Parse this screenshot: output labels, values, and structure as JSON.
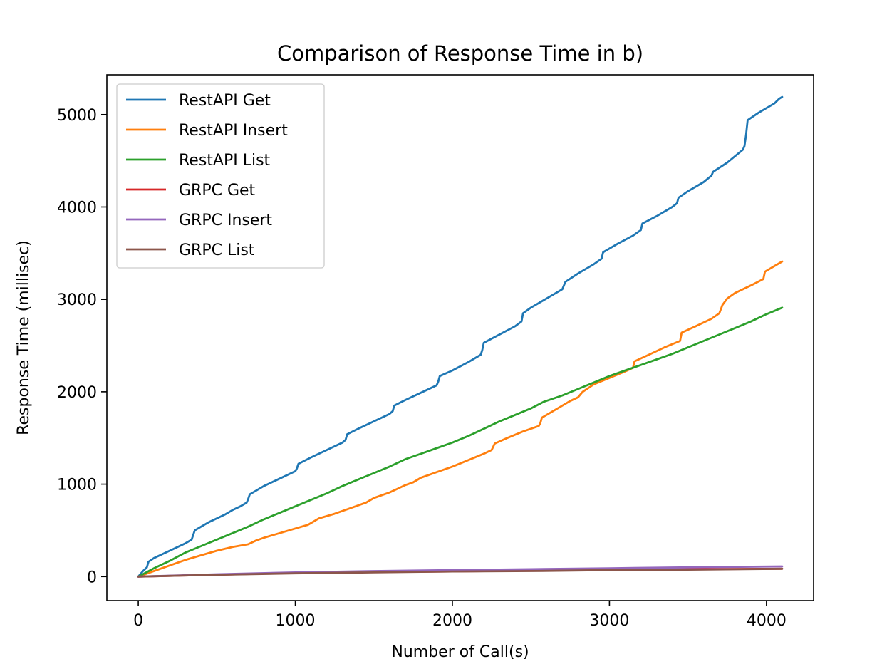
{
  "chart_data": {
    "type": "line",
    "title": "Comparison of Response Time in b)",
    "xlabel": "Number of Call(s)",
    "ylabel": "Response Time (millisec)",
    "xlim": [
      -200,
      4300
    ],
    "ylim": [
      -260,
      5430
    ],
    "xticks": [
      0,
      1000,
      2000,
      3000,
      4000
    ],
    "yticks": [
      0,
      1000,
      2000,
      3000,
      4000,
      5000
    ],
    "grid": false,
    "legend_position": "top-left",
    "series": [
      {
        "name": "RestAPI Get",
        "color": "#1f77b4",
        "points": [
          [
            0,
            0
          ],
          [
            30,
            60
          ],
          [
            55,
            100
          ],
          [
            65,
            160
          ],
          [
            100,
            200
          ],
          [
            150,
            240
          ],
          [
            200,
            280
          ],
          [
            300,
            360
          ],
          [
            340,
            400
          ],
          [
            350,
            450
          ],
          [
            360,
            500
          ],
          [
            400,
            540
          ],
          [
            450,
            590
          ],
          [
            500,
            630
          ],
          [
            550,
            670
          ],
          [
            600,
            720
          ],
          [
            650,
            760
          ],
          [
            690,
            800
          ],
          [
            700,
            840
          ],
          [
            710,
            890
          ],
          [
            750,
            930
          ],
          [
            800,
            980
          ],
          [
            900,
            1060
          ],
          [
            1000,
            1140
          ],
          [
            1010,
            1170
          ],
          [
            1020,
            1220
          ],
          [
            1100,
            1290
          ],
          [
            1200,
            1370
          ],
          [
            1300,
            1450
          ],
          [
            1320,
            1480
          ],
          [
            1330,
            1540
          ],
          [
            1400,
            1600
          ],
          [
            1500,
            1680
          ],
          [
            1600,
            1760
          ],
          [
            1620,
            1790
          ],
          [
            1630,
            1850
          ],
          [
            1700,
            1910
          ],
          [
            1800,
            1990
          ],
          [
            1900,
            2070
          ],
          [
            1910,
            2110
          ],
          [
            1920,
            2170
          ],
          [
            2000,
            2230
          ],
          [
            2100,
            2320
          ],
          [
            2180,
            2400
          ],
          [
            2190,
            2450
          ],
          [
            2200,
            2530
          ],
          [
            2300,
            2620
          ],
          [
            2400,
            2710
          ],
          [
            2440,
            2760
          ],
          [
            2450,
            2850
          ],
          [
            2500,
            2910
          ],
          [
            2600,
            3010
          ],
          [
            2700,
            3110
          ],
          [
            2720,
            3190
          ],
          [
            2800,
            3280
          ],
          [
            2900,
            3380
          ],
          [
            2950,
            3440
          ],
          [
            2960,
            3510
          ],
          [
            3050,
            3600
          ],
          [
            3150,
            3690
          ],
          [
            3200,
            3750
          ],
          [
            3210,
            3820
          ],
          [
            3300,
            3900
          ],
          [
            3400,
            4000
          ],
          [
            3430,
            4040
          ],
          [
            3440,
            4100
          ],
          [
            3500,
            4170
          ],
          [
            3600,
            4270
          ],
          [
            3650,
            4340
          ],
          [
            3660,
            4380
          ],
          [
            3750,
            4480
          ],
          [
            3850,
            4620
          ],
          [
            3860,
            4660
          ],
          [
            3870,
            4780
          ],
          [
            3880,
            4940
          ],
          [
            3950,
            5020
          ],
          [
            4050,
            5120
          ],
          [
            4080,
            5170
          ],
          [
            4100,
            5190
          ]
        ]
      },
      {
        "name": "RestAPI Insert",
        "color": "#ff7f0e",
        "points": [
          [
            0,
            0
          ],
          [
            100,
            60
          ],
          [
            200,
            120
          ],
          [
            300,
            180
          ],
          [
            400,
            230
          ],
          [
            500,
            280
          ],
          [
            600,
            320
          ],
          [
            700,
            350
          ],
          [
            750,
            390
          ],
          [
            800,
            420
          ],
          [
            900,
            470
          ],
          [
            1000,
            520
          ],
          [
            1080,
            560
          ],
          [
            1100,
            580
          ],
          [
            1150,
            630
          ],
          [
            1250,
            680
          ],
          [
            1350,
            740
          ],
          [
            1450,
            800
          ],
          [
            1500,
            850
          ],
          [
            1600,
            910
          ],
          [
            1650,
            950
          ],
          [
            1700,
            990
          ],
          [
            1750,
            1020
          ],
          [
            1800,
            1070
          ],
          [
            1900,
            1130
          ],
          [
            2000,
            1190
          ],
          [
            2100,
            1260
          ],
          [
            2200,
            1330
          ],
          [
            2250,
            1370
          ],
          [
            2270,
            1440
          ],
          [
            2350,
            1500
          ],
          [
            2450,
            1570
          ],
          [
            2550,
            1630
          ],
          [
            2560,
            1660
          ],
          [
            2570,
            1720
          ],
          [
            2650,
            1800
          ],
          [
            2700,
            1850
          ],
          [
            2750,
            1900
          ],
          [
            2800,
            1940
          ],
          [
            2830,
            2000
          ],
          [
            2900,
            2080
          ],
          [
            3000,
            2150
          ],
          [
            3100,
            2220
          ],
          [
            3150,
            2260
          ],
          [
            3160,
            2330
          ],
          [
            3250,
            2400
          ],
          [
            3350,
            2480
          ],
          [
            3450,
            2550
          ],
          [
            3460,
            2640
          ],
          [
            3550,
            2710
          ],
          [
            3650,
            2790
          ],
          [
            3700,
            2850
          ],
          [
            3720,
            2940
          ],
          [
            3750,
            3010
          ],
          [
            3800,
            3070
          ],
          [
            3900,
            3150
          ],
          [
            3980,
            3220
          ],
          [
            3990,
            3300
          ],
          [
            4050,
            3360
          ],
          [
            4100,
            3410
          ]
        ]
      },
      {
        "name": "RestAPI List",
        "color": "#2ca02c",
        "points": [
          [
            0,
            0
          ],
          [
            100,
            90
          ],
          [
            200,
            170
          ],
          [
            300,
            260
          ],
          [
            400,
            330
          ],
          [
            500,
            400
          ],
          [
            600,
            470
          ],
          [
            700,
            540
          ],
          [
            800,
            620
          ],
          [
            900,
            690
          ],
          [
            1000,
            760
          ],
          [
            1100,
            830
          ],
          [
            1200,
            900
          ],
          [
            1300,
            980
          ],
          [
            1400,
            1050
          ],
          [
            1500,
            1120
          ],
          [
            1600,
            1190
          ],
          [
            1700,
            1270
          ],
          [
            1800,
            1330
          ],
          [
            1900,
            1390
          ],
          [
            2000,
            1450
          ],
          [
            2100,
            1520
          ],
          [
            2200,
            1600
          ],
          [
            2300,
            1680
          ],
          [
            2400,
            1750
          ],
          [
            2500,
            1820
          ],
          [
            2580,
            1890
          ],
          [
            2700,
            1960
          ],
          [
            2800,
            2030
          ],
          [
            2900,
            2100
          ],
          [
            3000,
            2170
          ],
          [
            3100,
            2230
          ],
          [
            3200,
            2290
          ],
          [
            3300,
            2350
          ],
          [
            3400,
            2410
          ],
          [
            3500,
            2480
          ],
          [
            3600,
            2550
          ],
          [
            3700,
            2620
          ],
          [
            3800,
            2690
          ],
          [
            3900,
            2760
          ],
          [
            4000,
            2840
          ],
          [
            4100,
            2910
          ]
        ]
      },
      {
        "name": "GRPC Get",
        "color": "#d62728",
        "points": [
          [
            0,
            0
          ],
          [
            500,
            20
          ],
          [
            1000,
            40
          ],
          [
            1500,
            50
          ],
          [
            2000,
            55
          ],
          [
            2500,
            65
          ],
          [
            3000,
            75
          ],
          [
            3500,
            80
          ],
          [
            4100,
            85
          ]
        ]
      },
      {
        "name": "GRPC Insert",
        "color": "#9467bd",
        "points": [
          [
            0,
            0
          ],
          [
            500,
            25
          ],
          [
            1000,
            45
          ],
          [
            1500,
            60
          ],
          [
            2000,
            70
          ],
          [
            2500,
            80
          ],
          [
            3000,
            90
          ],
          [
            3500,
            100
          ],
          [
            4100,
            110
          ]
        ]
      },
      {
        "name": "GRPC List",
        "color": "#8c564b",
        "points": [
          [
            0,
            0
          ],
          [
            500,
            20
          ],
          [
            1000,
            35
          ],
          [
            1500,
            45
          ],
          [
            2000,
            55
          ],
          [
            2500,
            60
          ],
          [
            3000,
            70
          ],
          [
            3500,
            75
          ],
          [
            4100,
            85
          ]
        ]
      }
    ]
  }
}
